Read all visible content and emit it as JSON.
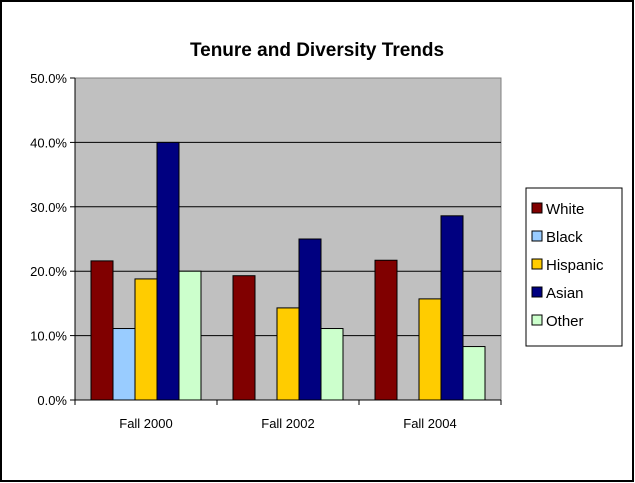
{
  "chart_data": {
    "type": "bar",
    "title": "Tenure and Diversity Trends",
    "categories": [
      "Fall 2000",
      "Fall 2002",
      "Fall 2004"
    ],
    "series": [
      {
        "name": "White",
        "color": "#800000",
        "values": [
          21.6,
          19.3,
          21.7
        ]
      },
      {
        "name": "Black",
        "color": "#99ccff",
        "values": [
          11.1,
          0,
          0
        ]
      },
      {
        "name": "Hispanic",
        "color": "#ffcc00",
        "values": [
          18.8,
          14.3,
          15.7
        ]
      },
      {
        "name": "Asian",
        "color": "#000080",
        "values": [
          40.0,
          25.0,
          28.6
        ]
      },
      {
        "name": "Other",
        "color": "#ccffcc",
        "values": [
          20.0,
          11.1,
          8.3
        ]
      }
    ],
    "ylim": [
      0,
      50
    ],
    "yticks": [
      "0.0%",
      "10.0%",
      "20.0%",
      "30.0%",
      "40.0%",
      "50.0%"
    ],
    "grid": true,
    "legend_position": "right",
    "plot_background": "#c0c0c0"
  }
}
